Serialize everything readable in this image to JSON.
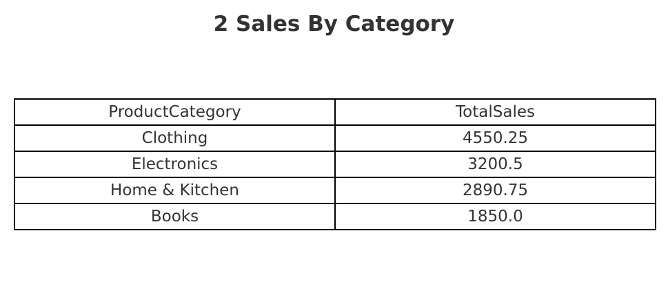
{
  "chart_data": {
    "type": "table",
    "title": "2 Sales By Category",
    "columns": [
      "ProductCategory",
      "TotalSales"
    ],
    "rows": [
      [
        "Clothing",
        "4550.25"
      ],
      [
        "Electronics",
        "3200.5"
      ],
      [
        "Home & Kitchen",
        "2890.75"
      ],
      [
        "Books",
        "1850.0"
      ]
    ]
  }
}
